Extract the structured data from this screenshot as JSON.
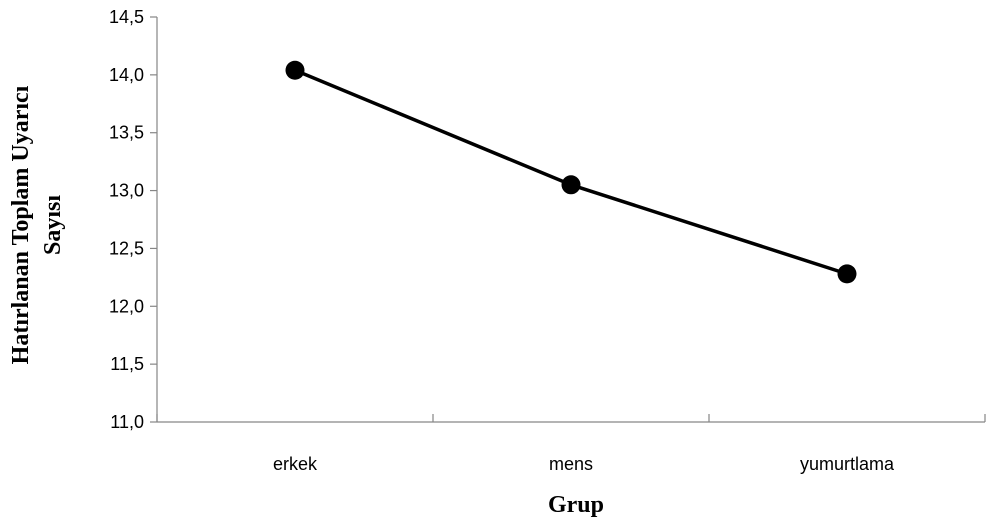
{
  "chart_data": {
    "type": "line",
    "categories": [
      "erkek",
      "mens",
      "yumurtlama"
    ],
    "series": [
      {
        "values": [
          14.04,
          13.05,
          12.28
        ]
      }
    ],
    "xlabel": "Grup",
    "ylabel_lines": [
      "Hatırlanan Toplam Uyarıcı",
      "Sayısı"
    ],
    "ylim": [
      11.0,
      14.5
    ],
    "yticks": [
      "11,0",
      "11,5",
      "12,0",
      "12,5",
      "13,0",
      "13,5",
      "14,0",
      "14,5"
    ],
    "ytick_values": [
      11.0,
      11.5,
      12.0,
      12.5,
      13.0,
      13.5,
      14.0,
      14.5
    ],
    "grid": false,
    "legend": "none",
    "line_color": "#000000",
    "marker": "filled-circle"
  }
}
